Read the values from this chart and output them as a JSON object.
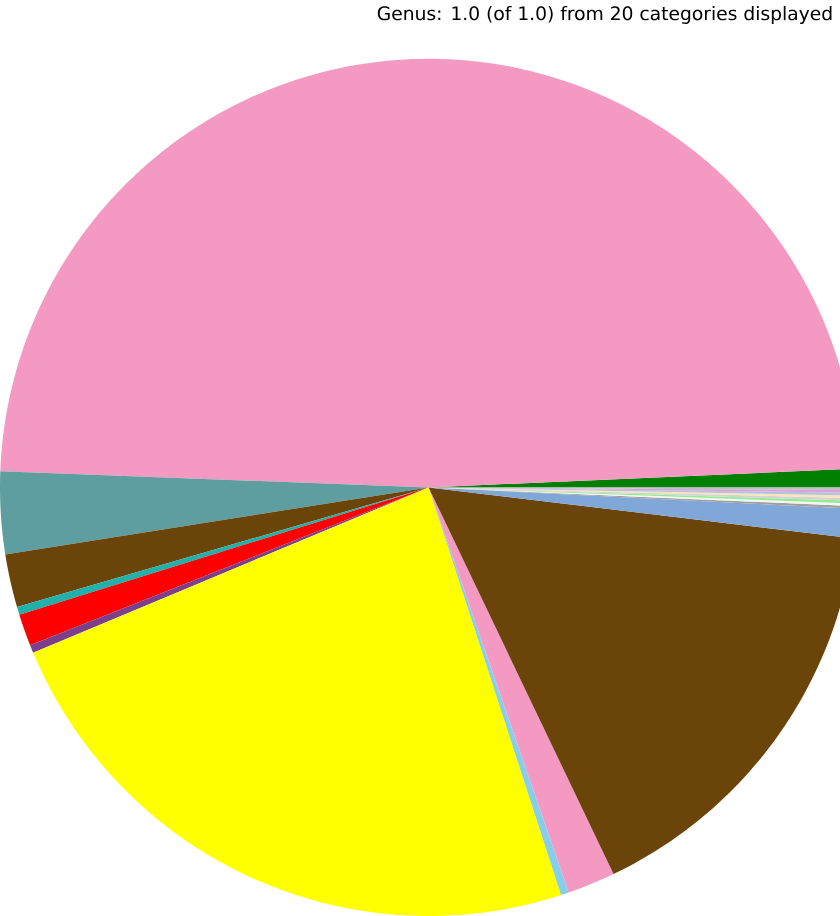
{
  "chart_data": {
    "type": "pie",
    "title": "Genus: 1.0 (of 1.0) from 20 categories displayed",
    "categories": [
      null,
      null,
      null,
      null,
      null,
      null,
      null,
      null,
      null,
      null,
      null,
      null,
      null,
      null,
      null,
      null,
      null,
      null,
      null,
      null
    ],
    "values": [
      0.7,
      48.7,
      3.1,
      2.0,
      0.3,
      1.2,
      0.3,
      23.7,
      0.3,
      1.8,
      16.0,
      1.1,
      0.1,
      0.1,
      0.1,
      0.1,
      0.1,
      0.1,
      0.1,
      0.1
    ],
    "colors": [
      "#008000",
      "#f49ac2",
      "#5f9ea0",
      "#6b4409",
      "#20b2aa",
      "#ff0000",
      "#7b3f8c",
      "#ffff00",
      "#87ceeb",
      "#f49ac2",
      "#6b4409",
      "#7fa8d8",
      "#a0a0a0",
      "#f5f5f5",
      "#90ee90",
      "#d3d3d3",
      "#ffe4b5",
      "#b0c4de",
      "#dda0dd",
      "#c0c0c0"
    ]
  }
}
